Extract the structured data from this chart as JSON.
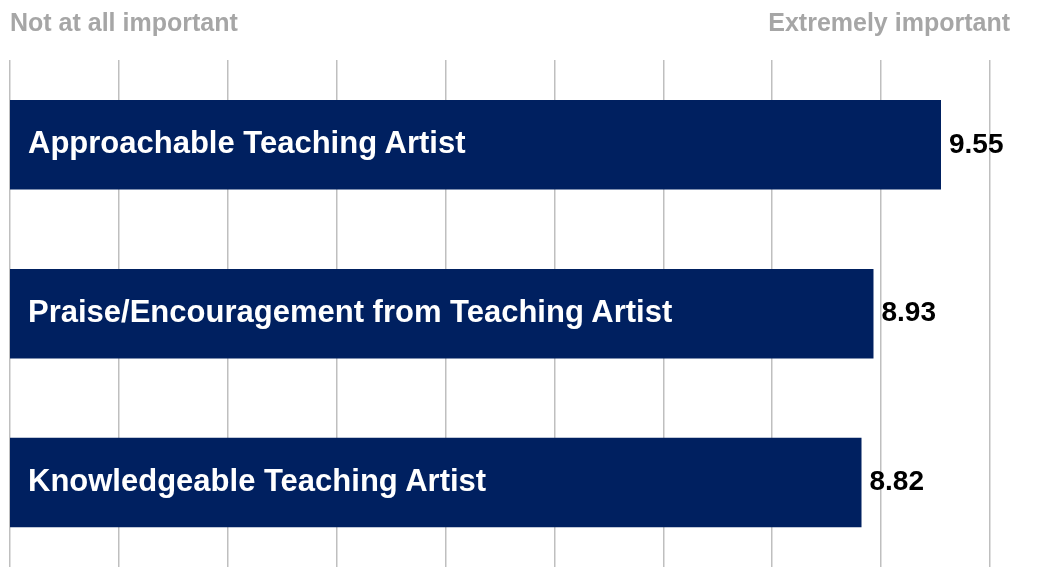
{
  "chart_data": {
    "type": "bar",
    "orientation": "horizontal",
    "categories": [
      "Approachable Teaching Artist",
      "Praise/Encouragement from Teaching Artist",
      "Knowledgeable Teaching Artist"
    ],
    "values": [
      9.55,
      8.93,
      8.82
    ],
    "color": "#002060",
    "xlim": [
      1,
      10
    ],
    "xticks": [
      {
        "value": 1,
        "label": null
      },
      {
        "value": 2,
        "label": null
      },
      {
        "value": 3,
        "label": null
      },
      {
        "value": 4,
        "label": null
      },
      {
        "value": 5,
        "label": null
      },
      {
        "value": 6,
        "label": null
      },
      {
        "value": 7,
        "label": null
      },
      {
        "value": 8,
        "label": null
      },
      {
        "value": 9,
        "label": null
      },
      {
        "value": 10,
        "label": null
      }
    ],
    "grid": "x",
    "legend": false,
    "data_labels": true,
    "annotations": [
      "Not at all important",
      "Extremely important"
    ]
  }
}
